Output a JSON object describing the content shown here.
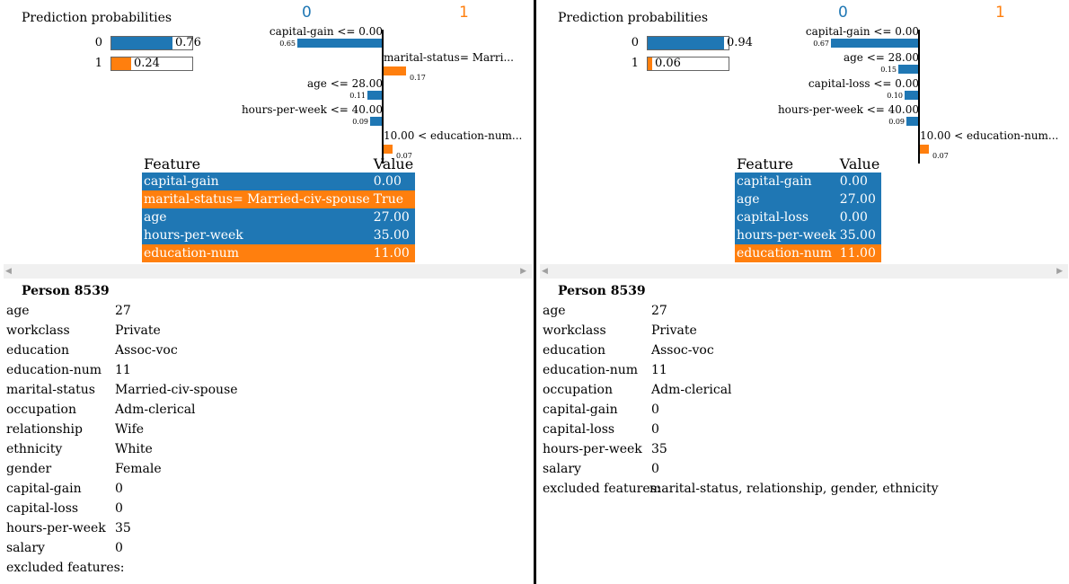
{
  "colors": {
    "class0": "#1f77b4",
    "class1": "#ff7f0e",
    "axis": "#000000",
    "scrollbar": "#f0f0f0"
  },
  "panels": [
    {
      "id": "left",
      "prediction": {
        "title": "Prediction probabilities",
        "classes": [
          {
            "label": "0",
            "value": 0.76,
            "text": "0.76"
          },
          {
            "label": "1",
            "value": 0.24,
            "text": "0.24"
          }
        ]
      },
      "explanation": {
        "class_labels": [
          "0",
          "1"
        ],
        "features": [
          {
            "text": "capital-gain <= 0.00",
            "weight": 0.65,
            "weight_text": "0.65",
            "side": "0"
          },
          {
            "text": "marital-status= Marri...",
            "weight": 0.17,
            "weight_text": "0.17",
            "side": "1"
          },
          {
            "text": "age <= 28.00",
            "weight": 0.11,
            "weight_text": "0.11",
            "side": "0"
          },
          {
            "text": "hours-per-week <= 40.00",
            "weight": 0.09,
            "weight_text": "0.09",
            "side": "0"
          },
          {
            "text": "10.00 < education-num...",
            "weight": 0.07,
            "weight_text": "0.07",
            "side": "1"
          }
        ]
      },
      "feature_table": {
        "headers": [
          "Feature",
          "Value"
        ],
        "rows": [
          {
            "feature": "capital-gain",
            "value": "0.00",
            "side": "0"
          },
          {
            "feature": "marital-status= Married-civ-spouse",
            "value": "True",
            "side": "1"
          },
          {
            "feature": "age",
            "value": "27.00",
            "side": "0"
          },
          {
            "feature": "hours-per-week",
            "value": "35.00",
            "side": "0"
          },
          {
            "feature": "education-num",
            "value": "11.00",
            "side": "1"
          }
        ]
      },
      "person": {
        "title": "Person 8539",
        "attributes": [
          {
            "name": "age",
            "value": "27"
          },
          {
            "name": "workclass",
            "value": "Private"
          },
          {
            "name": "education",
            "value": "Assoc-voc"
          },
          {
            "name": "education-num",
            "value": "11"
          },
          {
            "name": "marital-status",
            "value": "Married-civ-spouse"
          },
          {
            "name": "occupation",
            "value": "Adm-clerical"
          },
          {
            "name": "relationship",
            "value": "Wife"
          },
          {
            "name": "ethnicity",
            "value": "White"
          },
          {
            "name": "gender",
            "value": "Female"
          },
          {
            "name": "capital-gain",
            "value": "0"
          },
          {
            "name": "capital-loss",
            "value": "0"
          },
          {
            "name": "hours-per-week",
            "value": "35"
          },
          {
            "name": "salary",
            "value": "0"
          },
          {
            "name": "excluded features:",
            "value": ""
          }
        ]
      }
    },
    {
      "id": "right",
      "prediction": {
        "title": "Prediction probabilities",
        "classes": [
          {
            "label": "0",
            "value": 0.94,
            "text": "0.94"
          },
          {
            "label": "1",
            "value": 0.06,
            "text": "0.06"
          }
        ]
      },
      "explanation": {
        "class_labels": [
          "0",
          "1"
        ],
        "features": [
          {
            "text": "capital-gain <= 0.00",
            "weight": 0.67,
            "weight_text": "0.67",
            "side": "0"
          },
          {
            "text": "age <= 28.00",
            "weight": 0.15,
            "weight_text": "0.15",
            "side": "0"
          },
          {
            "text": "capital-loss <= 0.00",
            "weight": 0.1,
            "weight_text": "0.10",
            "side": "0"
          },
          {
            "text": "hours-per-week <= 40.00",
            "weight": 0.09,
            "weight_text": "0.09",
            "side": "0"
          },
          {
            "text": "10.00 < education-num...",
            "weight": 0.07,
            "weight_text": "0.07",
            "side": "1"
          }
        ]
      },
      "feature_table": {
        "headers": [
          "Feature",
          "Value"
        ],
        "rows": [
          {
            "feature": "capital-gain",
            "value": "0.00",
            "side": "0"
          },
          {
            "feature": "age",
            "value": "27.00",
            "side": "0"
          },
          {
            "feature": "capital-loss",
            "value": "0.00",
            "side": "0"
          },
          {
            "feature": "hours-per-week",
            "value": "35.00",
            "side": "0"
          },
          {
            "feature": "education-num",
            "value": "11.00",
            "side": "1"
          }
        ]
      },
      "person": {
        "title": "Person 8539",
        "attributes": [
          {
            "name": "age",
            "value": "27"
          },
          {
            "name": "workclass",
            "value": "Private"
          },
          {
            "name": "education",
            "value": "Assoc-voc"
          },
          {
            "name": "education-num",
            "value": "11"
          },
          {
            "name": "occupation",
            "value": "Adm-clerical"
          },
          {
            "name": "capital-gain",
            "value": "0"
          },
          {
            "name": "capital-loss",
            "value": "0"
          },
          {
            "name": "hours-per-week",
            "value": "35"
          },
          {
            "name": "salary",
            "value": "0"
          },
          {
            "name": "excluded features:",
            "value": "marital-status, relationship, gender, ethnicity"
          }
        ]
      }
    }
  ],
  "icons": {
    "scroll_left": "triangle-left-icon",
    "scroll_right": "triangle-right-icon"
  }
}
